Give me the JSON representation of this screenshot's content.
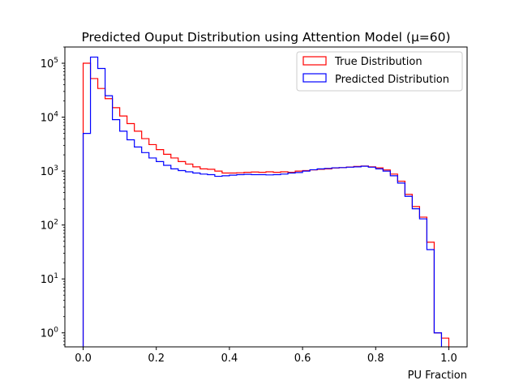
{
  "chart_data": {
    "type": "histogram",
    "title": "Predicted Ouput Distribution using Attention Model (μ=60)",
    "xlabel": "PU Fraction",
    "ylabel": "",
    "xlim": [
      -0.05,
      1.05
    ],
    "ylim": [
      0.55,
      200000
    ],
    "yscale": "log",
    "grid": false,
    "legend_position": "top-right",
    "bin_edges": [
      0.0,
      0.02,
      0.04,
      0.06,
      0.08,
      0.1,
      0.12,
      0.14,
      0.16,
      0.18,
      0.2,
      0.22,
      0.24,
      0.26,
      0.28,
      0.3,
      0.32,
      0.34,
      0.36,
      0.38,
      0.4,
      0.42,
      0.44,
      0.46,
      0.48,
      0.5,
      0.52,
      0.54,
      0.56,
      0.58,
      0.6,
      0.62,
      0.64,
      0.66,
      0.68,
      0.7,
      0.72,
      0.74,
      0.76,
      0.78,
      0.8,
      0.82,
      0.84,
      0.86,
      0.88,
      0.9,
      0.92,
      0.94,
      0.96,
      0.98,
      1.0
    ],
    "series": [
      {
        "name": "True Distribution",
        "color": "#ff0000",
        "values": [
          100000,
          52000,
          34000,
          22000,
          15000,
          10500,
          7600,
          5500,
          4000,
          3100,
          2500,
          2050,
          1750,
          1500,
          1350,
          1200,
          1100,
          1080,
          1000,
          920,
          920,
          930,
          950,
          960,
          950,
          970,
          950,
          970,
          950,
          1000,
          1020,
          1050,
          1080,
          1100,
          1140,
          1160,
          1190,
          1220,
          1240,
          1200,
          1150,
          1050,
          880,
          650,
          370,
          220,
          140,
          48,
          1.0,
          0.8
        ]
      },
      {
        "name": "Predicted Distribution",
        "color": "#0000ff",
        "values": [
          5000,
          130000,
          80000,
          25000,
          9000,
          5500,
          3800,
          2800,
          2200,
          1750,
          1500,
          1280,
          1100,
          1020,
          970,
          920,
          880,
          860,
          800,
          820,
          840,
          860,
          870,
          860,
          860,
          850,
          860,
          880,
          920,
          940,
          1000,
          1060,
          1100,
          1120,
          1150,
          1160,
          1180,
          1200,
          1230,
          1180,
          1100,
          1000,
          820,
          600,
          340,
          200,
          130,
          35,
          1.0,
          0
        ]
      }
    ],
    "xticks": [
      0.0,
      0.2,
      0.4,
      0.6,
      0.8,
      1.0
    ],
    "xtick_labels": [
      "0.0",
      "0.2",
      "0.4",
      "0.6",
      "0.8",
      "1.0"
    ],
    "yticks": [
      1,
      10,
      100,
      1000,
      10000,
      100000
    ],
    "ytick_bases": [
      "10",
      "10",
      "10",
      "10",
      "10",
      "10"
    ],
    "ytick_exponents": [
      "0",
      "1",
      "2",
      "3",
      "4",
      "5"
    ]
  }
}
